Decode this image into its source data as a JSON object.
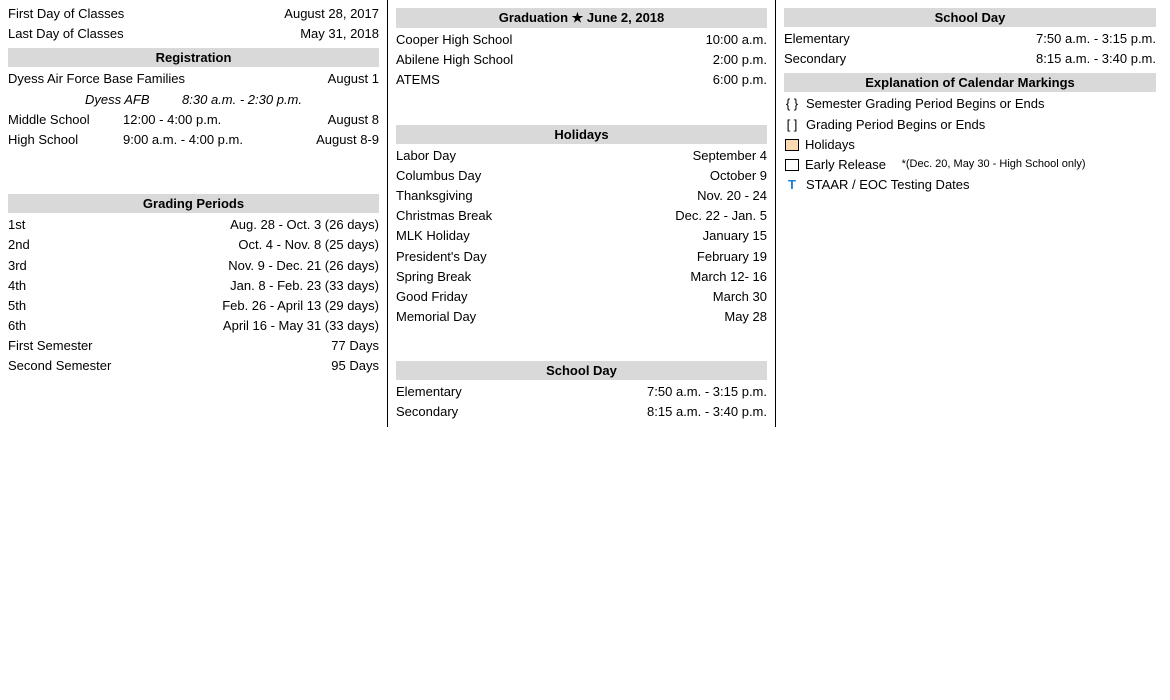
{
  "colors": {
    "header_bg": "#d9d9d9",
    "holiday_fill": "#fdd9b3",
    "testing_t": "#1f7fd4",
    "text": "#000000",
    "background": "#ffffff"
  },
  "col1": {
    "classes": [
      {
        "label": "First Day of Classes",
        "value": "August 28, 2017"
      },
      {
        "label": "Last Day of Classes",
        "value": "May 31, 2018"
      }
    ],
    "registration": {
      "title": "Registration",
      "dyess": {
        "label": "Dyess Air Force Base Families",
        "date": "August 1"
      },
      "dyess_note": {
        "label": "Dyess AFB",
        "time": "8:30 a.m. - 2:30 p.m."
      },
      "middle": {
        "label": "Middle School",
        "time": "12:00 - 4:00 p.m.",
        "date": "August 8"
      },
      "high": {
        "label": "High School",
        "time": "9:00 a.m. - 4:00 p.m.",
        "date": "August 8-9"
      }
    },
    "grading": {
      "title": "Grading Periods",
      "rows": [
        {
          "label": "1st",
          "value": "Aug. 28 - Oct. 3 (26 days)"
        },
        {
          "label": "2nd",
          "value": "Oct. 4 - Nov. 8 (25 days)"
        },
        {
          "label": "3rd",
          "value": "Nov. 9 - Dec. 21 (26 days)"
        },
        {
          "label": "4th",
          "value": "Jan. 8 - Feb. 23 (33 days)"
        },
        {
          "label": "5th",
          "value": "Feb. 26 - April 13 (29 days)"
        },
        {
          "label": "6th",
          "value": "April 16 - May 31 (33 days)"
        },
        {
          "label": "First Semester",
          "value": "77 Days"
        },
        {
          "label": "Second Semester",
          "value": "95 Days"
        }
      ]
    }
  },
  "col2": {
    "graduation": {
      "title": "Graduation ★ June 2, 2018",
      "rows": [
        {
          "label": "Cooper High School",
          "value": "10:00 a.m."
        },
        {
          "label": "Abilene High School",
          "value": "2:00 p.m."
        },
        {
          "label": "ATEMS",
          "value": "6:00 p.m."
        }
      ]
    },
    "holidays": {
      "title": "Holidays",
      "rows": [
        {
          "label": "Labor Day",
          "value": "September 4"
        },
        {
          "label": "Columbus Day",
          "value": "October 9"
        },
        {
          "label": "Thanksgiving",
          "value": "Nov. 20 - 24"
        },
        {
          "label": "Christmas Break",
          "value": "Dec. 22 - Jan. 5"
        },
        {
          "label": "MLK Holiday",
          "value": "January 15"
        },
        {
          "label": "President's Day",
          "value": "February 19"
        },
        {
          "label": "Spring Break",
          "value": "March 12- 16"
        },
        {
          "label": "Good Friday",
          "value": "March 30"
        },
        {
          "label": "Memorial Day",
          "value": "May 28"
        }
      ]
    },
    "schoolday": {
      "title": "School Day",
      "rows": [
        {
          "label": "Elementary",
          "value": "7:50 a.m. - 3:15 p.m."
        },
        {
          "label": "Secondary",
          "value": "8:15 a.m. - 3:40 p.m."
        }
      ]
    }
  },
  "col3": {
    "schoolday": {
      "title": "School Day",
      "rows": [
        {
          "label": "Elementary",
          "value": "7:50 a.m. - 3:15 p.m."
        },
        {
          "label": "Secondary",
          "value": "8:15 a.m. - 3:40 p.m."
        }
      ]
    },
    "legend": {
      "title": "Explanation of Calendar Markings",
      "semester": {
        "symbol": "{ }",
        "text": "Semester Grading Period Begins or Ends"
      },
      "grading": {
        "symbol": "[  ]",
        "text": "Grading Period Begins or Ends"
      },
      "holidays": {
        "text": "Holidays"
      },
      "early": {
        "text": "Early Release",
        "note": "*(Dec. 20, May 30 - High School only)"
      },
      "staar": {
        "symbol": "T",
        "text": "STAAR / EOC Testing Dates"
      }
    }
  }
}
